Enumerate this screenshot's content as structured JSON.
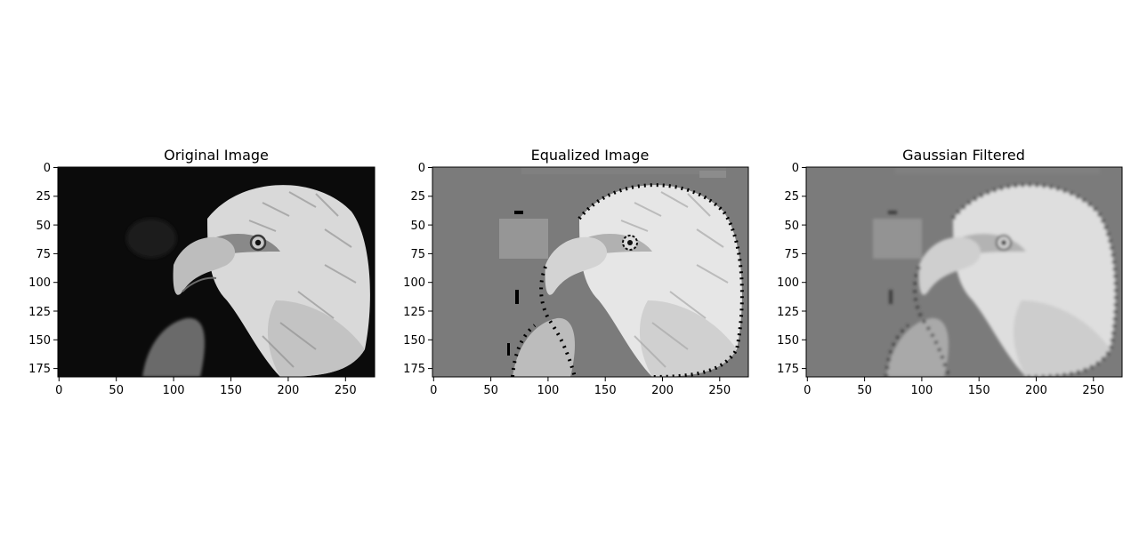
{
  "panels": [
    {
      "id": "original",
      "title": "Original Image",
      "image": {
        "subject": "bald-eagle-head",
        "colormap": "gray",
        "background": "#0b0b0b",
        "head_tone": "#d9d9d9",
        "head_shadow": "#8a8a8a",
        "beak_tone": "#bdbdbd",
        "wing_tone": "#6a6a6a"
      },
      "x_ticks": [
        "0",
        "50",
        "100",
        "150",
        "200",
        "250"
      ],
      "y_ticks": [
        "0",
        "25",
        "50",
        "75",
        "100",
        "125",
        "150",
        "175"
      ]
    },
    {
      "id": "equalized",
      "title": "Equalized Image",
      "image": {
        "subject": "bald-eagle-head",
        "colormap": "gray",
        "background": "#7b7b7b",
        "head_tone": "#e6e6e6",
        "head_shadow": "#b0b0b0",
        "beak_tone": "#d3d3d3",
        "wing_tone": "#bcbcbc",
        "speckle_tone": "#000000"
      },
      "x_ticks": [
        "0",
        "50",
        "100",
        "150",
        "200",
        "250"
      ],
      "y_ticks": [
        "0",
        "25",
        "50",
        "75",
        "100",
        "125",
        "150",
        "175"
      ]
    },
    {
      "id": "gaussian",
      "title": "Gaussian Filtered",
      "image": {
        "subject": "bald-eagle-head",
        "colormap": "gray",
        "background": "#7b7b7b",
        "head_tone": "#dedede",
        "head_shadow": "#b4b4b4",
        "beak_tone": "#cfcfcf",
        "wing_tone": "#a9a9a9",
        "speckle_tone": "#3a3a3a"
      },
      "x_ticks": [
        "0",
        "50",
        "100",
        "150",
        "200",
        "250"
      ],
      "y_ticks": [
        "0",
        "25",
        "50",
        "75",
        "100",
        "125",
        "150",
        "175"
      ]
    }
  ]
}
